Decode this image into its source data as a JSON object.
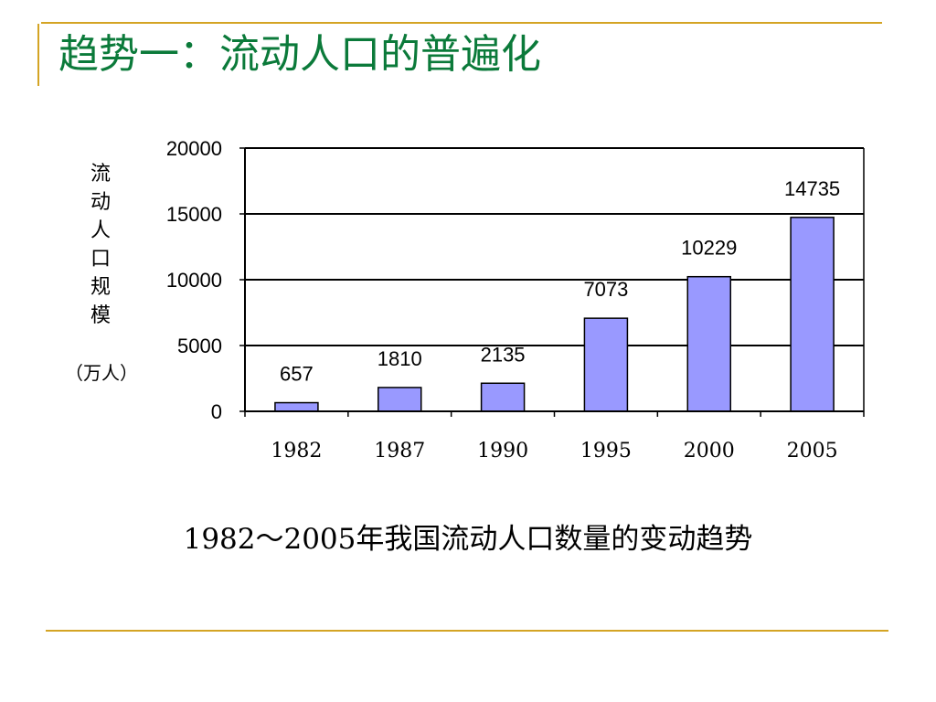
{
  "slide": {
    "title": "趋势一：流动人口的普遍化",
    "caption": "1982～2005年我国流动人口数量的变动趋势"
  },
  "colors": {
    "accent_rule": "#d4a424",
    "title": "#0b7a3a",
    "bar_fill": "#9999ff",
    "bar_stroke": "#000000"
  },
  "chart_data": {
    "type": "bar",
    "categories": [
      "1982",
      "1987",
      "1990",
      "1995",
      "2000",
      "2005"
    ],
    "values": [
      657,
      1810,
      2135,
      7073,
      10229,
      14735
    ],
    "data_labels": [
      "657",
      "1810",
      "2135",
      "7073",
      "10229",
      "14735"
    ],
    "title": "",
    "xlabel": "",
    "ylabel": "流动人口规模",
    "ylabel_unit": "（万人）",
    "ylim": [
      0,
      20000
    ],
    "yticks": [
      0,
      5000,
      10000,
      15000,
      20000
    ],
    "ytick_labels": [
      "0",
      "5000",
      "10000",
      "15000",
      "20000"
    ],
    "grid": true,
    "legend": "none"
  }
}
